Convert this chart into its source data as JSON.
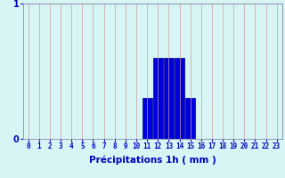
{
  "hours": [
    0,
    1,
    2,
    3,
    4,
    5,
    6,
    7,
    8,
    9,
    10,
    11,
    12,
    13,
    14,
    15,
    16,
    17,
    18,
    19,
    20,
    21,
    22,
    23
  ],
  "values": [
    0,
    0,
    0,
    0,
    0,
    0,
    0,
    0,
    0,
    0,
    0,
    0.3,
    0.6,
    0.6,
    0.6,
    0.3,
    0,
    0,
    0,
    0,
    0,
    0,
    0,
    0
  ],
  "bar_color": "#0000dd",
  "bar_edge_color": "#00008b",
  "background_color": "#d8f5f5",
  "grid_color_x": "#c8a0a0",
  "grid_color_y": "#c8a0a0",
  "axis_color": "#8888aa",
  "xlabel": "Précipitations 1h ( mm )",
  "ylim": [
    0,
    1
  ],
  "yticks": [
    0,
    1
  ],
  "xlabel_color": "#0000bb",
  "tick_color": "#0000bb",
  "xlabel_fontsize": 7.5,
  "tick_fontsize": 5.5,
  "ytick_fontsize": 7.0
}
